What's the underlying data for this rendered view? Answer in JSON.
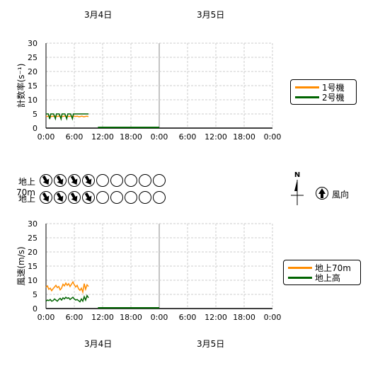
{
  "dates": {
    "top": [
      "3月4日",
      "3月5日"
    ],
    "bottom": [
      "3月4日",
      "3月5日"
    ]
  },
  "chart_data": [
    {
      "type": "line",
      "ylabel": "計数率(s⁻¹)",
      "ylim": [
        0,
        30
      ],
      "yticks": [
        "0",
        "5",
        "10",
        "15",
        "20",
        "25",
        "30"
      ],
      "x_ticks": [
        "0:00",
        "6:00",
        "12:00",
        "18:00",
        "0:00",
        "6:00",
        "12:00",
        "18:00",
        "0:00"
      ],
      "x_hours": [
        0,
        48
      ],
      "grid": true,
      "legend_position": "right",
      "series": [
        {
          "name": "1号機",
          "color": "#ff8c00",
          "x": [
            0,
            0.3,
            0.6,
            1.0,
            1.3,
            1.5,
            1.8,
            2.0,
            2.3,
            2.5,
            2.8,
            3.0,
            3.3,
            3.6,
            4.0,
            4.3,
            4.6,
            5.0,
            5.3,
            5.6,
            6.0,
            6.3,
            6.6,
            7.0,
            7.3,
            7.6,
            8.0,
            8.3,
            8.6,
            9.0
          ],
          "y": [
            4.2,
            4.1,
            4.3,
            4.0,
            4.2,
            4.1,
            4.3,
            4.0,
            4.2,
            4.1,
            4.3,
            4.0,
            4.2,
            4.1,
            4.3,
            4.0,
            4.2,
            4.1,
            4.3,
            4.0,
            4.2,
            4.1,
            4.2,
            4.0,
            4.1,
            4.2,
            4.0,
            4.1,
            4.2,
            4.1
          ]
        },
        {
          "name": "2号機",
          "color": "#006400",
          "x": [
            0,
            0.5,
            0.8,
            1.0,
            1.2,
            1.6,
            2.0,
            2.2,
            2.4,
            2.8,
            3.2,
            3.4,
            3.6,
            4.0,
            4.4,
            4.6,
            4.8,
            5.2,
            5.6,
            5.8,
            6.0,
            6.5,
            7.0,
            7.5,
            8.0,
            8.5,
            9.0
          ],
          "y": [
            5.0,
            5.0,
            3.2,
            5.0,
            5.0,
            5.0,
            3.3,
            5.0,
            5.0,
            5.0,
            3.2,
            5.0,
            5.0,
            5.0,
            3.3,
            5.0,
            5.0,
            5.0,
            3.3,
            5.0,
            5.0,
            5.0,
            5.0,
            5.0,
            5.0,
            5.0,
            5.0
          ]
        }
      ],
      "zero_segment": {
        "color": "#006400",
        "x": [
          11,
          24
        ]
      }
    },
    {
      "type": "line",
      "ylabel": "風速(m/s)",
      "ylim": [
        0,
        30
      ],
      "yticks": [
        "0",
        "5",
        "10",
        "15",
        "20",
        "25",
        "30"
      ],
      "x_ticks": [
        "0:00",
        "6:00",
        "12:00",
        "18:00",
        "0:00",
        "6:00",
        "12:00",
        "18:00",
        "0:00"
      ],
      "x_hours": [
        0,
        48
      ],
      "grid": true,
      "legend_position": "right",
      "series": [
        {
          "name": "地上70m",
          "color": "#ff8c00",
          "x": [
            0,
            0.3,
            0.6,
            0.9,
            1.2,
            1.5,
            1.8,
            2.1,
            2.4,
            2.7,
            3.0,
            3.3,
            3.6,
            3.9,
            4.2,
            4.5,
            4.8,
            5.1,
            5.4,
            5.7,
            6.0,
            6.3,
            6.6,
            6.9,
            7.2,
            7.5,
            7.8,
            8.1,
            8.4,
            8.7,
            9.0
          ],
          "y": [
            7.5,
            8.0,
            6.8,
            7.2,
            6.3,
            7.0,
            7.6,
            8.2,
            7.4,
            7.8,
            6.6,
            7.2,
            8.6,
            8.0,
            9.0,
            8.2,
            8.8,
            7.8,
            8.6,
            9.4,
            8.4,
            7.6,
            8.2,
            7.0,
            6.4,
            7.2,
            5.8,
            8.8,
            6.8,
            8.4,
            7.8
          ]
        },
        {
          "name": "地上高",
          "color": "#006400",
          "x": [
            0,
            0.3,
            0.6,
            0.9,
            1.2,
            1.5,
            1.8,
            2.1,
            2.4,
            2.7,
            3.0,
            3.3,
            3.6,
            3.9,
            4.2,
            4.5,
            4.8,
            5.1,
            5.4,
            5.7,
            6.0,
            6.3,
            6.6,
            6.9,
            7.2,
            7.5,
            7.8,
            8.1,
            8.4,
            8.7,
            9.0
          ],
          "y": [
            2.6,
            3.0,
            2.8,
            3.2,
            2.6,
            2.8,
            3.4,
            3.0,
            2.6,
            3.2,
            3.6,
            3.0,
            3.8,
            3.4,
            4.0,
            3.6,
            3.8,
            3.2,
            3.6,
            4.0,
            3.4,
            3.0,
            3.2,
            2.8,
            2.4,
            3.4,
            2.6,
            4.2,
            3.0,
            4.6,
            3.8
          ]
        }
      ],
      "zero_segment": {
        "color": "#006400",
        "x": [
          11,
          24
        ]
      }
    }
  ],
  "wind": {
    "rows": [
      {
        "label": "地上70m",
        "directions": [
          "nw",
          "nw",
          "nw",
          "nw",
          "",
          "",
          "",
          "",
          ""
        ]
      },
      {
        "label": "地上",
        "directions": [
          "nw",
          "nw",
          "nw",
          "nw",
          "",
          "",
          "",
          "",
          ""
        ]
      }
    ],
    "compass_label": "N",
    "legend_label": "風向"
  }
}
